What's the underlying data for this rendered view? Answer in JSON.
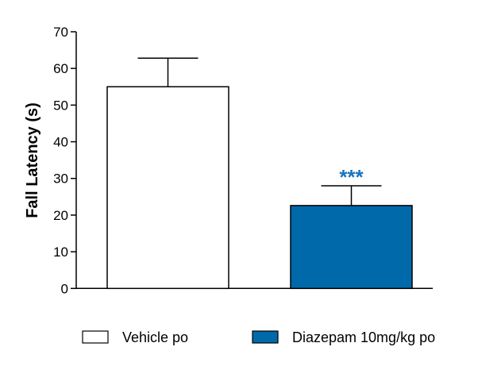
{
  "chart_data": {
    "type": "bar",
    "title": "",
    "xlabel": "",
    "ylabel": "Fall Latency (s)",
    "ylim": [
      0,
      70
    ],
    "yticks": [
      "0",
      "10",
      "20",
      "30",
      "40",
      "50",
      "60",
      "70"
    ],
    "grid": false,
    "legend_placement": "bottom",
    "categories": [
      "Vehicle po",
      "Diazepam 10mg/kg po"
    ],
    "values": [
      55.0,
      22.6
    ],
    "error_upper": [
      62.8,
      28.0
    ],
    "colors": [
      "#ffffff",
      "#0069aa"
    ],
    "annotations": [
      {
        "category": "Diazepam 10mg/kg po",
        "text": "***",
        "color": "#1a73bd"
      }
    ],
    "legend": [
      {
        "label": "Vehicle po",
        "color": "#ffffff"
      },
      {
        "label": "Diazepam 10mg/kg po",
        "color": "#0069aa"
      }
    ]
  }
}
